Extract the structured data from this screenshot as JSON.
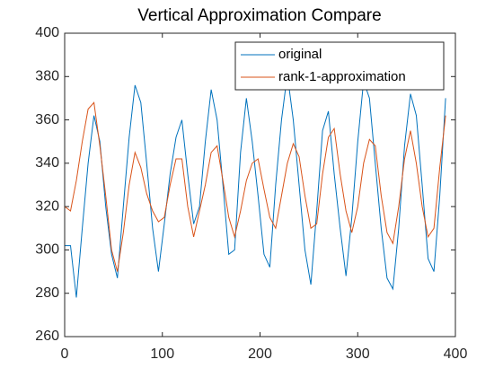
{
  "chart_data": {
    "type": "line",
    "title": "Vertical Approximation Compare",
    "x": [
      0,
      6,
      12,
      18,
      24,
      30,
      36,
      42,
      48,
      54,
      60,
      66,
      72,
      78,
      84,
      90,
      96,
      102,
      108,
      114,
      120,
      126,
      132,
      138,
      144,
      150,
      156,
      162,
      168,
      174,
      180,
      186,
      192,
      198,
      204,
      210,
      216,
      222,
      228,
      234,
      240,
      246,
      252,
      258,
      264,
      270,
      276,
      282,
      288,
      294,
      300,
      306,
      312,
      318,
      324,
      330,
      336,
      342,
      348,
      354,
      360,
      366,
      372,
      378,
      384,
      390
    ],
    "series": [
      {
        "name": "original",
        "color": "#0072bd",
        "values": [
          302,
          302,
          278,
          310,
          340,
          362,
          350,
          320,
          298,
          287,
          320,
          352,
          376,
          368,
          340,
          310,
          290,
          312,
          335,
          352,
          360,
          335,
          312,
          320,
          350,
          374,
          360,
          330,
          298,
          300,
          345,
          370,
          350,
          325,
          298,
          292,
          330,
          360,
          381,
          360,
          330,
          300,
          284,
          318,
          355,
          364,
          335,
          310,
          288,
          315,
          350,
          378,
          370,
          340,
          310,
          287,
          282,
          310,
          348,
          372,
          362,
          330,
          296,
          290,
          325,
          370
        ]
      },
      {
        "name": "rank-1-approximation",
        "color": "#d95319",
        "values": [
          320,
          318,
          332,
          350,
          365,
          368,
          348,
          325,
          300,
          290,
          308,
          330,
          345,
          338,
          326,
          318,
          313,
          315,
          330,
          342,
          342,
          320,
          306,
          318,
          330,
          345,
          348,
          332,
          315,
          306,
          318,
          332,
          340,
          342,
          328,
          315,
          310,
          325,
          340,
          349,
          343,
          325,
          310,
          312,
          335,
          352,
          356,
          335,
          318,
          308,
          320,
          340,
          351,
          348,
          325,
          308,
          303,
          320,
          342,
          355,
          340,
          320,
          306,
          310,
          338,
          362
        ]
      }
    ],
    "xlim": [
      0,
      400
    ],
    "xticks": [
      0,
      100,
      200,
      300,
      400
    ],
    "ylim": [
      260,
      400
    ],
    "yticks": [
      260,
      280,
      300,
      320,
      340,
      360,
      380,
      400
    ],
    "legend": "upper right"
  }
}
